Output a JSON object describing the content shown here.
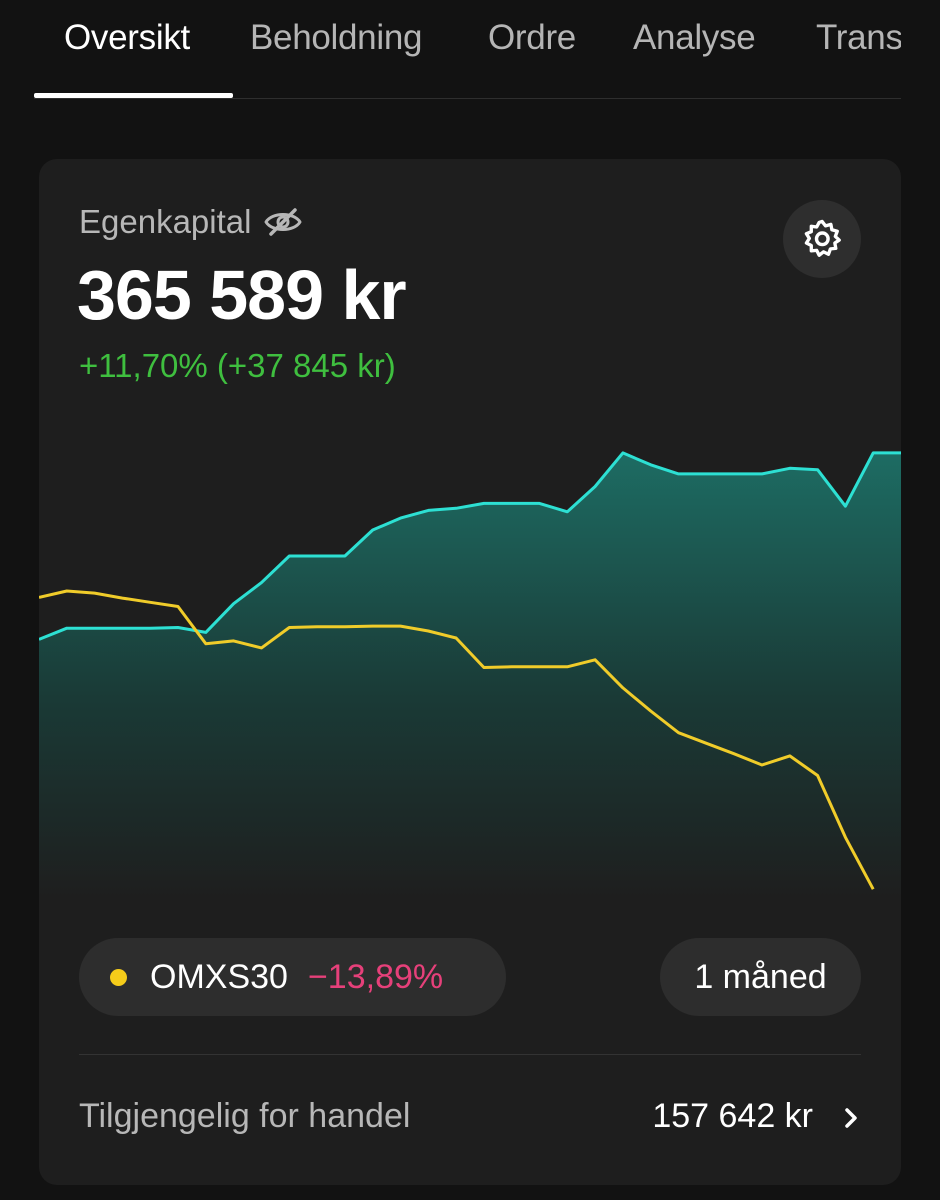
{
  "tabs": [
    {
      "label": "Oversikt",
      "active": true
    },
    {
      "label": "Beholdning",
      "active": false
    },
    {
      "label": "Ordre",
      "active": false
    },
    {
      "label": "Analyse",
      "active": false
    },
    {
      "label": "Trans",
      "active": false
    }
  ],
  "summary": {
    "equity_label": "Egenkapital",
    "equity_value": "365 589 kr",
    "change_text": "+11,70% (+37 845 kr)",
    "hide_icon": "eye-off-icon",
    "settings_icon": "gear-icon"
  },
  "comparison": {
    "index_name": "OMXS30",
    "index_change": "−13,89%",
    "index_color": "#f5cc1a",
    "period_label": "1 måned"
  },
  "available": {
    "label": "Tilgjengelig for handel",
    "value": "157 642 kr",
    "icon": "chevron-right-icon"
  },
  "colors": {
    "portfolio_line": "#2de0d3",
    "index_line": "#f0cc2a",
    "positive": "#3fbf3f",
    "negative": "#e6407a"
  },
  "chart_data": {
    "type": "line",
    "series": [
      {
        "name": "Portfolio",
        "values": [
          0.0,
          1.6,
          1.6,
          1.6,
          1.6,
          1.7,
          1.0,
          5.1,
          8.1,
          11.9,
          11.9,
          11.9,
          15.6,
          17.3,
          18.4,
          18.7,
          19.4,
          19.4,
          19.4,
          18.2,
          21.8,
          26.6,
          24.9,
          23.6,
          23.6,
          23.6,
          23.6,
          24.4,
          24.2,
          19.0,
          26.6,
          26.6
        ]
      },
      {
        "name": "OMXS30",
        "values": [
          6.0,
          6.9,
          6.6,
          5.9,
          5.3,
          4.7,
          -0.6,
          -0.2,
          -1.2,
          1.7,
          1.8,
          1.8,
          1.9,
          1.9,
          1.2,
          0.2,
          -4.0,
          -3.9,
          -3.9,
          -3.9,
          -2.9,
          -6.9,
          -10.2,
          -13.3,
          -14.8,
          -16.3,
          -17.9,
          -16.6,
          -19.4,
          -28.2,
          -35.6
        ]
      }
    ],
    "ylim": [
      -37,
      30
    ],
    "grid": false,
    "legend": "none"
  }
}
